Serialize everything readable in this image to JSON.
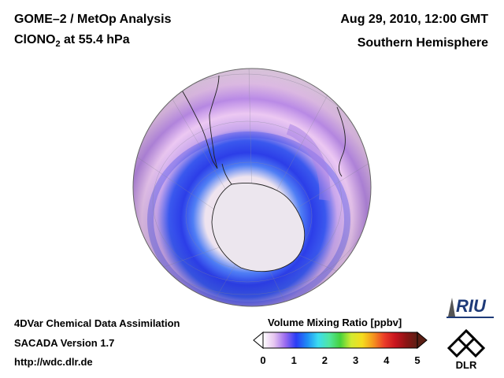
{
  "header": {
    "title": "GOME–2 / MetOp Analysis",
    "species_prefix": "ClONO",
    "species_sub": "2",
    "species_suffix": " at 55.4 hPa",
    "date": "Aug 29, 2010, 12:00 GMT",
    "region": "Southern Hemisphere"
  },
  "footer": {
    "line1": "4DVar Chemical Data Assimilation",
    "line2": "SACADA Version 1.7",
    "line3": "http://wdc.dlr.de"
  },
  "colorbar": {
    "title": "Volume Mixing Ratio [ppbv]",
    "ticks": [
      "0",
      "1",
      "2",
      "3",
      "4",
      "5"
    ],
    "colors": [
      "#ffffff",
      "#e6c6f0",
      "#9c6cf0",
      "#2a3cf5",
      "#1e8cf5",
      "#3cdcf0",
      "#50e6a0",
      "#46d23c",
      "#d2eb32",
      "#f5dc1e",
      "#f5961e",
      "#eb3c28",
      "#c8141e",
      "#8c1414",
      "#5a1e14"
    ]
  },
  "logos": {
    "riu": "RIU",
    "dlr": "DLR"
  }
}
